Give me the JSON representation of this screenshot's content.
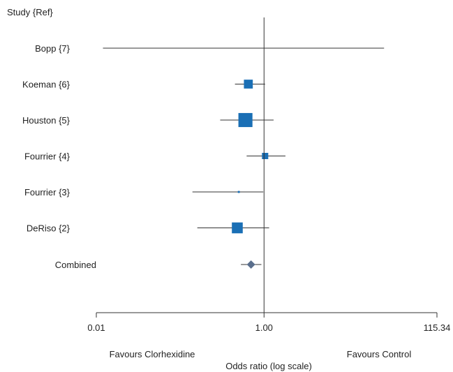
{
  "chart_data": {
    "type": "forest",
    "header": "Study   {Ref}",
    "x_scale": "log",
    "xlim": [
      0.01,
      115.34
    ],
    "x_ticks": [
      {
        "value": 0.01,
        "label": "0.01"
      },
      {
        "value": 1.0,
        "label": "1.00"
      },
      {
        "value": 115.34,
        "label": "115.34"
      }
    ],
    "reference_line": 1.0,
    "xlabel": "Odds ratio (log scale)",
    "left_caption": "Favours Clorhexidine",
    "right_caption": "Favours Control",
    "studies": [
      {
        "label": "Bopp {7}",
        "or": 1.0,
        "ci": [
          0.012,
          27.0
        ],
        "weight": 0
      },
      {
        "label": "Koeman {6}",
        "or": 0.65,
        "ci": [
          0.45,
          1.03
        ],
        "weight": 2
      },
      {
        "label": "Houston {5}",
        "or": 0.6,
        "ci": [
          0.3,
          1.3
        ],
        "weight": 5
      },
      {
        "label": "Fourrier {4}",
        "or": 1.03,
        "ci": [
          0.62,
          1.8
        ],
        "weight": 1
      },
      {
        "label": "Fourrier {3}",
        "or": 0.5,
        "ci": [
          0.14,
          0.98
        ],
        "weight": 0.1
      },
      {
        "label": "DeRiso {2}",
        "or": 0.48,
        "ci": [
          0.16,
          1.15
        ],
        "weight": 3
      }
    ],
    "combined": {
      "label": "Combined",
      "or": 0.7,
      "ci": [
        0.53,
        0.93
      ]
    },
    "colors": {
      "box": "#1a6fb5",
      "diamond": "#5a6e8c",
      "line": "#333333"
    }
  }
}
